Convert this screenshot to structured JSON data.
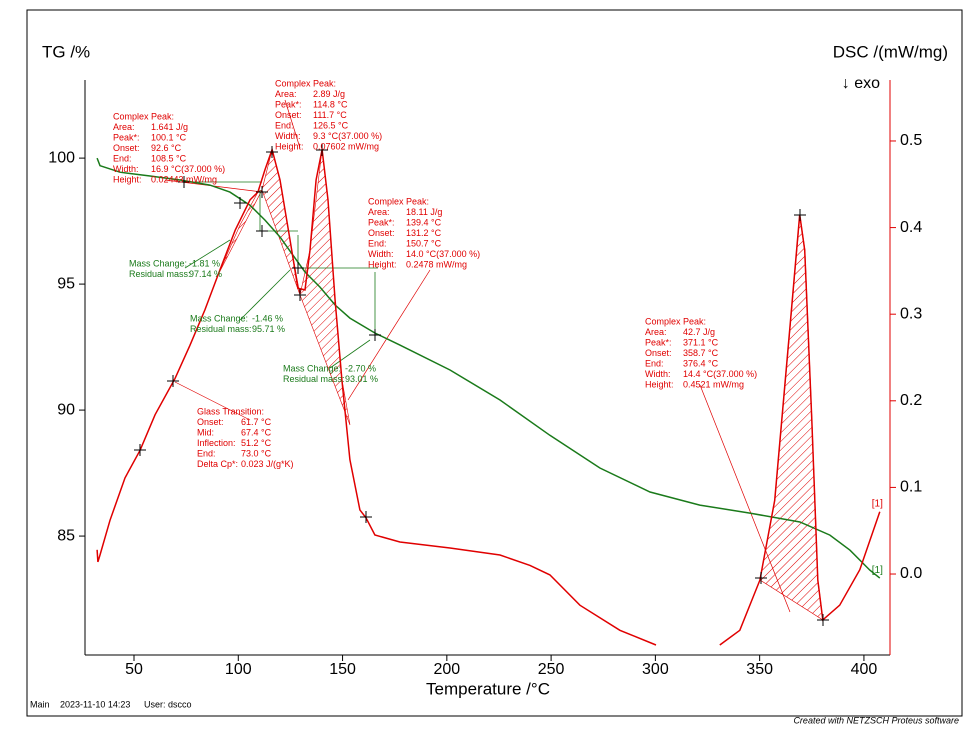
{
  "chart_data": {
    "type": "line",
    "x_label": "Temperature /°C",
    "y_label": "TG /%",
    "y2_label": "DSC /(mW/mg)",
    "y2_note": "↓ exo",
    "xlim": [
      26.5,
      412.5
    ],
    "ylim": [
      80.28,
      103.1
    ],
    "y2lim": [
      -0.0935,
      0.5704
    ],
    "xticks": [
      50,
      100,
      150,
      200,
      250,
      300,
      350,
      400
    ],
    "yticks": [
      85,
      90,
      95,
      100
    ],
    "y2ticks": [
      {
        "value": 0,
        "label": "0.0"
      },
      0.1,
      0.2,
      0.3,
      0.4,
      0.5
    ],
    "grid": false,
    "series": [
      {
        "name": "[1]",
        "color": "#1a7a1a",
        "x": [
          32.3,
          33.7,
          43.3,
          57.7,
          72.1,
          86.4,
          96,
          105.6,
          112.8,
          120,
          127.2,
          132,
          139.2,
          146.4,
          153.5,
          165.5,
          177.5,
          201.5,
          225.5,
          249.4,
          273.4,
          297.4,
          321.3,
          345.3,
          369.3,
          383.7,
          393.3,
          402.8,
          407.6
        ],
        "values": [
          100,
          99.7,
          99.44,
          99.29,
          99.13,
          98.93,
          98.65,
          98.13,
          97.54,
          96.87,
          96.03,
          95.48,
          94.88,
          94.17,
          93.65,
          93.06,
          92.58,
          91.59,
          90.4,
          89.0,
          87.7,
          86.75,
          86.23,
          85.91,
          85.56,
          85.04,
          84.44,
          83.65,
          83.33
        ]
      },
      {
        "name": "[1]",
        "color": "#e00000",
        "axis": "y2",
        "x": [
          32.3,
          32.7,
          33.7,
          38.5,
          45.7,
          52.9,
          60.1,
          69.7,
          76.8,
          84,
          91.2,
          98.5,
          105.6,
          109.4,
          112.8,
          116.2,
          120,
          124.8,
          128.6,
          132,
          134.4,
          137.3,
          140.2,
          143,
          146.4,
          149.7,
          153.5,
          158.3,
          161.2,
          165.5,
          177.5,
          201.5,
          225.5,
          239.9,
          249.4,
          263.8,
          283,
          300.3,
          315,
          330.9,
          340.5,
          350.1,
          357.2,
          364.4,
          369.2,
          371.6,
          375,
          377.9,
          380.3,
          388.4,
          398,
          407.6
        ],
        "values": [
          0.028,
          0.014,
          0.022,
          0.062,
          0.111,
          0.143,
          0.184,
          0.226,
          0.264,
          0.305,
          0.351,
          0.397,
          0.432,
          0.441,
          0.467,
          0.49,
          0.455,
          0.386,
          0.33,
          0.328,
          0.374,
          0.455,
          0.49,
          0.432,
          0.316,
          0.224,
          0.132,
          0.074,
          0.065,
          0.045,
          0.037,
          0.03,
          0.022,
          0.01,
          -0.001,
          -0.036,
          -0.065,
          -0.082,
          null,
          -0.082,
          -0.065,
          -0.007,
          0.085,
          0.282,
          0.415,
          0.374,
          0.178,
          -0.007,
          -0.053,
          -0.036,
          0.005,
          0.072
        ]
      }
    ],
    "annotations": [
      {
        "title": "Complex Peak:",
        "color": "#e00000",
        "rows": [
          [
            "Area:",
            "1.641 J/g"
          ],
          [
            "Peak*:",
            "100.1 °C"
          ],
          [
            "Onset:",
            "92.6 °C"
          ],
          [
            "End:",
            "108.5 °C"
          ],
          [
            "Width:",
            "16.9 °C(37.000 %)"
          ],
          [
            "Height:",
            "0.02443 mW/mg"
          ]
        ]
      },
      {
        "title": "Complex Peak:",
        "color": "#e00000",
        "rows": [
          [
            "Area:",
            "2.89 J/g"
          ],
          [
            "Peak*:",
            "114.8 °C"
          ],
          [
            "Onset:",
            "111.7 °C"
          ],
          [
            "End:",
            "126.5 °C"
          ],
          [
            "Width:",
            "9.3 °C(37.000 %)"
          ],
          [
            "Height:",
            "0.07602 mW/mg"
          ]
        ]
      },
      {
        "title": "Complex Peak:",
        "color": "#e00000",
        "rows": [
          [
            "Area:",
            "18.11 J/g"
          ],
          [
            "Peak*:",
            "139.4 °C"
          ],
          [
            "Onset:",
            "131.2 °C"
          ],
          [
            "End:",
            "150.7 °C"
          ],
          [
            "Width:",
            "14.0 °C(37.000 %)"
          ],
          [
            "Height:",
            "0.2478 mW/mg"
          ]
        ]
      },
      {
        "title": "Complex Peak:",
        "color": "#e00000",
        "rows": [
          [
            "Area:",
            "42.7 J/g"
          ],
          [
            "Peak*:",
            "371.1 °C"
          ],
          [
            "Onset:",
            "358.7 °C"
          ],
          [
            "End:",
            "376.4 °C"
          ],
          [
            "Width:",
            "14.4 °C(37.000 %)"
          ],
          [
            "Height:",
            "0.4521 mW/mg"
          ]
        ]
      },
      {
        "title": "Glass Transition:",
        "color": "#e00000",
        "rows": [
          [
            "Onset:",
            "61.7 °C"
          ],
          [
            "Mid:",
            "67.4 °C"
          ],
          [
            "Inflection:",
            "51.2 °C"
          ],
          [
            "End:",
            "73.0 °C"
          ],
          [
            "Delta Cp*:",
            "0.023 J/(g*K)"
          ]
        ]
      },
      {
        "color": "#1a7a1a",
        "rows": [
          [
            "Mass Change:",
            "-1.81 %"
          ],
          [
            "Residual mass:",
            "97.14 %"
          ]
        ]
      },
      {
        "color": "#1a7a1a",
        "rows": [
          [
            "Mass Change:",
            "-1.46 %"
          ],
          [
            "Residual mass:",
            "95.71 %"
          ]
        ]
      },
      {
        "color": "#1a7a1a",
        "rows": [
          [
            "Mass Change:",
            "-2.70 %"
          ],
          [
            "Residual mass:",
            "93.01 %"
          ]
        ]
      }
    ]
  },
  "footer": {
    "left": [
      "Main",
      "2023-11-10 14:23",
      "User: dscco"
    ],
    "right": "Created with NETZSCH Proteus software"
  }
}
